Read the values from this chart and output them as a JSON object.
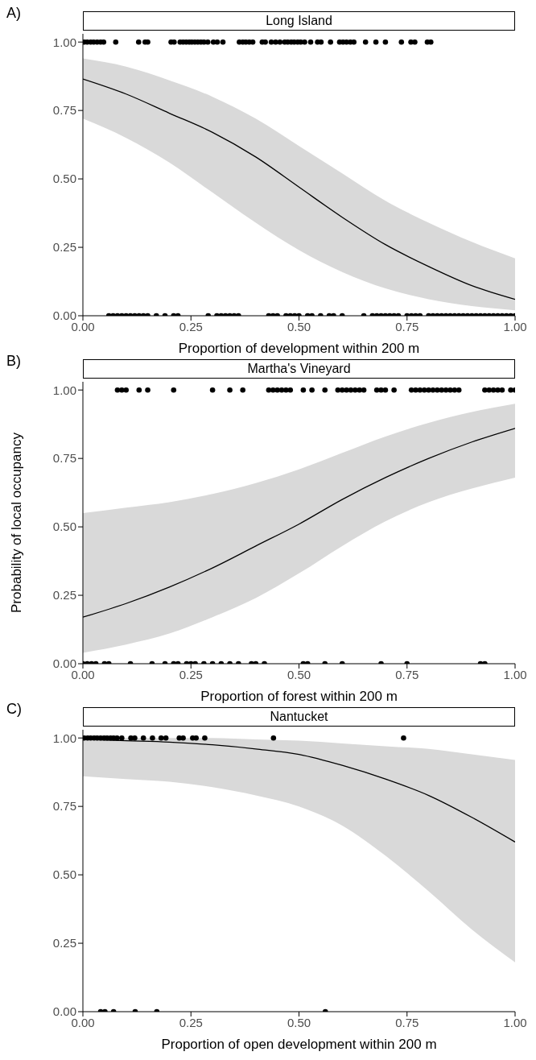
{
  "chart_data": [
    {
      "type": "line",
      "title": "Long Island",
      "xlabel": "Proportion of development within 200 m",
      "annotations": [
        "A)"
      ],
      "xlim": [
        0,
        1
      ],
      "ylim": [
        0,
        1.03
      ],
      "xticks": [
        {
          "value": 0,
          "label": "0.00"
        },
        {
          "value": 0.25,
          "label": "0.25"
        },
        {
          "value": 0.5,
          "label": "0.50"
        },
        {
          "value": 0.75,
          "label": "0.75"
        },
        {
          "value": 1,
          "label": "1.00"
        }
      ],
      "yticks": [
        {
          "value": 0,
          "label": "0.00"
        },
        {
          "value": 0.25,
          "label": "0.25"
        },
        {
          "value": 0.5,
          "label": "0.50"
        },
        {
          "value": 0.75,
          "label": "0.75"
        },
        {
          "value": 1,
          "label": "1.00"
        }
      ],
      "series": [
        {
          "color": "#000000",
          "marker": "none",
          "x": [
            0,
            0.1,
            0.2,
            0.3,
            0.4,
            0.5,
            0.6,
            0.7,
            0.8,
            0.9,
            1
          ],
          "values": [
            0.865,
            0.81,
            0.74,
            0.67,
            0.58,
            0.47,
            0.36,
            0.26,
            0.18,
            0.11,
            0.06
          ],
          "lower": [
            0.72,
            0.65,
            0.56,
            0.45,
            0.34,
            0.24,
            0.16,
            0.1,
            0.06,
            0.035,
            0.02
          ],
          "upper": [
            0.94,
            0.91,
            0.86,
            0.8,
            0.72,
            0.62,
            0.52,
            0.42,
            0.34,
            0.27,
            0.21
          ]
        },
        {
          "type": "scatter",
          "color": "#000000",
          "marker": "circle",
          "x": [
            0.003,
            0.01,
            0.018,
            0.025,
            0.033,
            0.041,
            0.048,
            0.076,
            0.129,
            0.144,
            0.15,
            0.204,
            0.211,
            0.225,
            0.232,
            0.239,
            0.246,
            0.252,
            0.259,
            0.266,
            0.273,
            0.28,
            0.289,
            0.302,
            0.311,
            0.324,
            0.362,
            0.37,
            0.377,
            0.385,
            0.393,
            0.415,
            0.422,
            0.436,
            0.446,
            0.456,
            0.467,
            0.474,
            0.482,
            0.489,
            0.497,
            0.504,
            0.513,
            0.527,
            0.543,
            0.551,
            0.573,
            0.594,
            0.602,
            0.61,
            0.619,
            0.627,
            0.654,
            0.678,
            0.7,
            0.737,
            0.759,
            0.768,
            0.797,
            0.805,
            0.06,
            0.07,
            0.08,
            0.09,
            0.1,
            0.11,
            0.12,
            0.13,
            0.14,
            0.15,
            0.17,
            0.19,
            0.21,
            0.22,
            0.29,
            0.31,
            0.32,
            0.33,
            0.34,
            0.35,
            0.36,
            0.43,
            0.44,
            0.45,
            0.47,
            0.48,
            0.49,
            0.5,
            0.52,
            0.53,
            0.55,
            0.57,
            0.58,
            0.6,
            0.65,
            0.67,
            0.68,
            0.69,
            0.7,
            0.71,
            0.72,
            0.73,
            0.75,
            0.76,
            0.77,
            0.78,
            0.8,
            0.81,
            0.82,
            0.83,
            0.84,
            0.85,
            0.86,
            0.87,
            0.88,
            0.89,
            0.9,
            0.91,
            0.92,
            0.93,
            0.94,
            0.95,
            0.96,
            0.97,
            0.98,
            0.99,
            1
          ],
          "values": [
            1,
            1,
            1,
            1,
            1,
            1,
            1,
            1,
            1,
            1,
            1,
            1,
            1,
            1,
            1,
            1,
            1,
            1,
            1,
            1,
            1,
            1,
            1,
            1,
            1,
            1,
            1,
            1,
            1,
            1,
            1,
            1,
            1,
            1,
            1,
            1,
            1,
            1,
            1,
            1,
            1,
            1,
            1,
            1,
            1,
            1,
            1,
            1,
            1,
            1,
            1,
            1,
            1,
            1,
            1,
            1,
            1,
            1,
            1,
            1,
            0,
            0,
            0,
            0,
            0,
            0,
            0,
            0,
            0,
            0,
            0,
            0,
            0,
            0,
            0,
            0,
            0,
            0,
            0,
            0,
            0,
            0,
            0,
            0,
            0,
            0,
            0,
            0,
            0,
            0,
            0,
            0,
            0,
            0,
            0,
            0,
            0,
            0,
            0,
            0,
            0,
            0,
            0,
            0,
            0,
            0,
            0,
            0,
            0,
            0,
            0,
            0,
            0,
            0,
            0,
            0,
            0,
            0,
            0,
            0,
            0,
            0,
            0,
            0,
            0,
            0,
            0
          ]
        }
      ]
    },
    {
      "type": "line",
      "title": "Martha's Vineyard",
      "xlabel": "Proportion of forest within 200 m",
      "ylabel": "Probability of local occupancy",
      "annotations": [
        "B)"
      ],
      "xlim": [
        0,
        1
      ],
      "ylim": [
        0,
        1.03
      ],
      "xticks": [
        {
          "value": 0,
          "label": "0.00"
        },
        {
          "value": 0.25,
          "label": "0.25"
        },
        {
          "value": 0.5,
          "label": "0.50"
        },
        {
          "value": 0.75,
          "label": "0.75"
        },
        {
          "value": 1,
          "label": "1.00"
        }
      ],
      "yticks": [
        {
          "value": 0,
          "label": "0.00"
        },
        {
          "value": 0.25,
          "label": "0.25"
        },
        {
          "value": 0.5,
          "label": "0.50"
        },
        {
          "value": 0.75,
          "label": "0.75"
        },
        {
          "value": 1,
          "label": "1.00"
        }
      ],
      "series": [
        {
          "color": "#000000",
          "marker": "none",
          "x": [
            0,
            0.1,
            0.2,
            0.3,
            0.4,
            0.5,
            0.6,
            0.7,
            0.8,
            0.9,
            1
          ],
          "values": [
            0.17,
            0.22,
            0.28,
            0.35,
            0.43,
            0.51,
            0.6,
            0.68,
            0.75,
            0.81,
            0.86
          ],
          "lower": [
            0.04,
            0.07,
            0.11,
            0.17,
            0.24,
            0.33,
            0.43,
            0.52,
            0.59,
            0.64,
            0.68
          ],
          "upper": [
            0.55,
            0.57,
            0.59,
            0.62,
            0.66,
            0.71,
            0.77,
            0.83,
            0.88,
            0.92,
            0.95
          ]
        },
        {
          "type": "scatter",
          "color": "#000000",
          "marker": "circle",
          "x": [
            0.08,
            0.09,
            0.1,
            0.13,
            0.15,
            0.21,
            0.3,
            0.34,
            0.37,
            0.43,
            0.44,
            0.45,
            0.46,
            0.47,
            0.48,
            0.51,
            0.53,
            0.56,
            0.59,
            0.6,
            0.61,
            0.62,
            0.63,
            0.64,
            0.65,
            0.68,
            0.69,
            0.7,
            0.72,
            0.76,
            0.77,
            0.78,
            0.79,
            0.8,
            0.81,
            0.82,
            0.83,
            0.84,
            0.85,
            0.86,
            0.87,
            0.93,
            0.94,
            0.95,
            0.96,
            0.97,
            0.99,
            1,
            0,
            0.01,
            0.02,
            0.03,
            0.05,
            0.06,
            0.11,
            0.16,
            0.19,
            0.21,
            0.22,
            0.24,
            0.25,
            0.26,
            0.28,
            0.3,
            0.32,
            0.34,
            0.36,
            0.39,
            0.4,
            0.42,
            0.51,
            0.52,
            0.56,
            0.6,
            0.69,
            0.75,
            0.92,
            0.93
          ],
          "values": [
            1,
            1,
            1,
            1,
            1,
            1,
            1,
            1,
            1,
            1,
            1,
            1,
            1,
            1,
            1,
            1,
            1,
            1,
            1,
            1,
            1,
            1,
            1,
            1,
            1,
            1,
            1,
            1,
            1,
            1,
            1,
            1,
            1,
            1,
            1,
            1,
            1,
            1,
            1,
            1,
            1,
            1,
            1,
            1,
            1,
            1,
            1,
            1,
            0,
            0,
            0,
            0,
            0,
            0,
            0,
            0,
            0,
            0,
            0,
            0,
            0,
            0,
            0,
            0,
            0,
            0,
            0,
            0,
            0,
            0,
            0,
            0,
            0,
            0,
            0,
            0,
            0,
            0
          ]
        }
      ]
    },
    {
      "type": "line",
      "title": "Nantucket",
      "xlabel": "Proportion of open development within 200 m",
      "annotations": [
        "C)"
      ],
      "xlim": [
        0,
        1
      ],
      "ylim": [
        0,
        1.03
      ],
      "xticks": [
        {
          "value": 0,
          "label": "0.00"
        },
        {
          "value": 0.25,
          "label": "0.25"
        },
        {
          "value": 0.5,
          "label": "0.50"
        },
        {
          "value": 0.75,
          "label": "0.75"
        },
        {
          "value": 1,
          "label": "1.00"
        }
      ],
      "yticks": [
        {
          "value": 0,
          "label": "0.00"
        },
        {
          "value": 0.25,
          "label": "0.25"
        },
        {
          "value": 0.5,
          "label": "0.50"
        },
        {
          "value": 0.75,
          "label": "0.75"
        },
        {
          "value": 1,
          "label": "1.00"
        }
      ],
      "series": [
        {
          "color": "#000000",
          "marker": "none",
          "x": [
            0,
            0.1,
            0.2,
            0.3,
            0.4,
            0.5,
            0.6,
            0.7,
            0.8,
            0.9,
            1
          ],
          "values": [
            0.995,
            0.99,
            0.985,
            0.975,
            0.96,
            0.94,
            0.9,
            0.85,
            0.79,
            0.71,
            0.62
          ],
          "lower": [
            0.86,
            0.85,
            0.84,
            0.82,
            0.79,
            0.75,
            0.68,
            0.57,
            0.44,
            0.3,
            0.18
          ],
          "upper": [
            1,
            1,
            1,
            1,
            0.995,
            0.99,
            0.98,
            0.97,
            0.96,
            0.94,
            0.92
          ]
        },
        {
          "type": "scatter",
          "color": "#000000",
          "marker": "circle",
          "x": [
            0.003,
            0.011,
            0.018,
            0.026,
            0.033,
            0.041,
            0.049,
            0.056,
            0.064,
            0.071,
            0.079,
            0.09,
            0.111,
            0.12,
            0.14,
            0.161,
            0.181,
            0.192,
            0.223,
            0.232,
            0.254,
            0.262,
            0.282,
            0.441,
            0.742,
            0.041,
            0.051,
            0.071,
            0.121,
            0.171,
            0.561
          ],
          "values": [
            1,
            1,
            1,
            1,
            1,
            1,
            1,
            1,
            1,
            1,
            1,
            1,
            1,
            1,
            1,
            1,
            1,
            1,
            1,
            1,
            1,
            1,
            1,
            1,
            1,
            0,
            0,
            0,
            0,
            0,
            0
          ]
        }
      ]
    }
  ]
}
